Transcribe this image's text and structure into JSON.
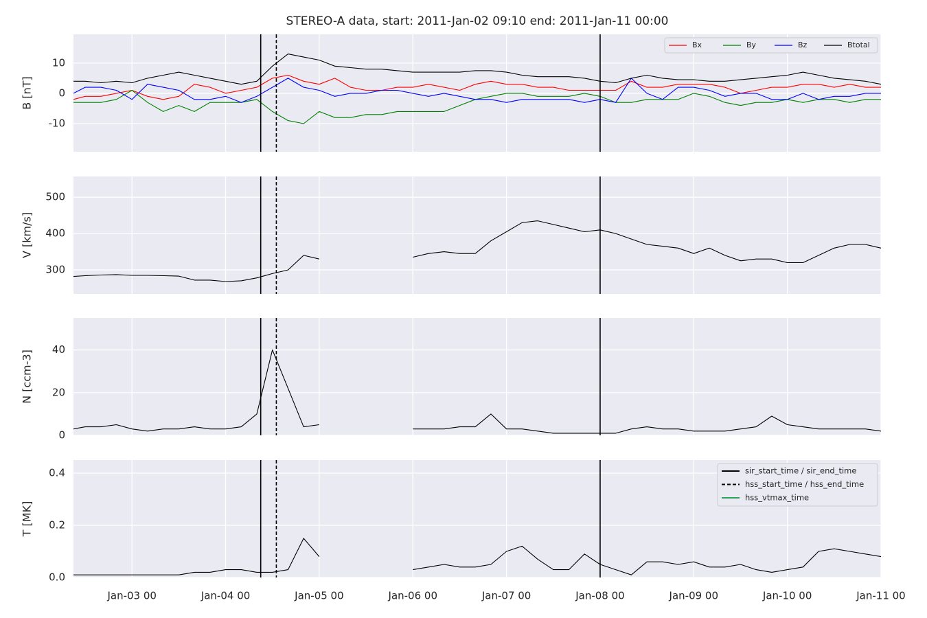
{
  "chart_data": [
    {
      "type": "line",
      "title": "STEREO-A data, start: 2011-Jan-02 09:10  end: 2011-Jan-11 00:00",
      "ylabel": "B [nT]",
      "x": [
        "Jan-02 09",
        "Jan-02 12",
        "Jan-02 16",
        "Jan-02 20",
        "Jan-03 00",
        "Jan-03 04",
        "Jan-03 08",
        "Jan-03 12",
        "Jan-03 16",
        "Jan-03 20",
        "Jan-04 00",
        "Jan-04 04",
        "Jan-04 08",
        "Jan-04 12",
        "Jan-04 16",
        "Jan-04 20",
        "Jan-05 00",
        "Jan-05 04",
        "Jan-05 08",
        "Jan-05 12",
        "Jan-05 16",
        "Jan-05 20",
        "Jan-06 00",
        "Jan-06 04",
        "Jan-06 08",
        "Jan-06 12",
        "Jan-06 16",
        "Jan-06 20",
        "Jan-07 00",
        "Jan-07 04",
        "Jan-07 08",
        "Jan-07 12",
        "Jan-07 16",
        "Jan-07 20",
        "Jan-08 00",
        "Jan-08 04",
        "Jan-08 08",
        "Jan-08 12",
        "Jan-08 16",
        "Jan-08 20",
        "Jan-09 00",
        "Jan-09 04",
        "Jan-09 08",
        "Jan-09 12",
        "Jan-09 16",
        "Jan-09 20",
        "Jan-10 00",
        "Jan-10 04",
        "Jan-10 08",
        "Jan-10 12",
        "Jan-10 16",
        "Jan-10 20",
        "Jan-11 00"
      ],
      "series": [
        {
          "name": "Bx",
          "color": "#ff0000",
          "values": [
            -2,
            -1,
            -1,
            0,
            1,
            -1,
            -2,
            -1,
            3,
            2,
            0,
            1,
            2,
            5,
            6,
            4,
            3,
            5,
            2,
            1,
            1,
            2,
            2,
            3,
            2,
            1,
            3,
            4,
            3,
            3,
            2,
            2,
            1,
            1,
            1,
            1,
            4,
            2,
            2,
            3,
            3,
            3,
            2,
            0,
            1,
            2,
            2,
            3,
            3,
            2,
            3,
            2,
            2
          ]
        },
        {
          "name": "By",
          "color": "#008000",
          "values": [
            -3,
            -3,
            -3,
            -2,
            1,
            -3,
            -6,
            -4,
            -6,
            -3,
            -3,
            -3,
            -2,
            -6,
            -9,
            -10,
            -6,
            -8,
            -8,
            -7,
            -7,
            -6,
            -6,
            -6,
            -6,
            -4,
            -2,
            -1,
            0,
            0,
            -1,
            -1,
            -1,
            0,
            -1,
            -3,
            -3,
            -2,
            -2,
            -2,
            0,
            -1,
            -3,
            -4,
            -3,
            -3,
            -2,
            -3,
            -2,
            -2,
            -3,
            -2,
            -2
          ]
        },
        {
          "name": "Bz",
          "color": "#0000ff",
          "values": [
            0,
            2,
            2,
            1,
            -2,
            3,
            2,
            1,
            -2,
            -2,
            -1,
            -3,
            -1,
            2,
            5,
            2,
            1,
            -1,
            0,
            0,
            1,
            1,
            0,
            -1,
            0,
            -1,
            -2,
            -2,
            -3,
            -2,
            -2,
            -2,
            -2,
            -3,
            -2,
            -3,
            5,
            0,
            -2,
            2,
            2,
            1,
            -1,
            0,
            0,
            -2,
            -2,
            0,
            -2,
            -1,
            -1,
            0,
            0
          ]
        },
        {
          "name": "Btotal",
          "color": "#000000",
          "values": [
            4,
            4,
            3.5,
            4,
            3.5,
            5,
            6,
            7,
            6,
            5,
            4,
            3,
            4,
            9,
            13,
            12,
            11,
            9,
            8.5,
            8,
            8,
            7.5,
            7,
            7,
            7,
            7,
            7.5,
            7.5,
            7,
            6,
            5.5,
            5.5,
            5.5,
            5,
            4,
            3.5,
            5,
            6,
            5,
            4.5,
            4.5,
            4,
            4,
            4.5,
            5,
            5.5,
            6,
            7,
            6,
            5,
            4.5,
            4,
            3
          ]
        }
      ],
      "xlim": [
        "Jan-02 09",
        "Jan-11 00"
      ],
      "xticks": [
        "Jan-03 00",
        "Jan-04 00",
        "Jan-05 00",
        "Jan-06 00",
        "Jan-07 00",
        "Jan-08 00",
        "Jan-09 00",
        "Jan-10 00",
        "Jan-11 00"
      ],
      "ylim": [
        -19.3,
        19.5
      ],
      "yticks": [
        -10,
        0,
        10
      ],
      "grid": true,
      "legend": "upper right",
      "markers": [
        {
          "color": "#000000",
          "style": "solid",
          "x": [
            "Jan-04 09",
            "Jan-08 00"
          ]
        },
        {
          "color": "#000000",
          "style": "dashed",
          "x": [
            "Jan-04 13"
          ]
        }
      ]
    },
    {
      "type": "line",
      "ylabel": "V [km/s]",
      "x": [
        "Jan-02 09",
        "Jan-02 12",
        "Jan-02 16",
        "Jan-02 20",
        "Jan-03 00",
        "Jan-03 04",
        "Jan-03 08",
        "Jan-03 12",
        "Jan-03 16",
        "Jan-03 20",
        "Jan-04 00",
        "Jan-04 04",
        "Jan-04 08",
        "Jan-04 12",
        "Jan-04 16",
        "Jan-04 20",
        "Jan-05 00",
        "Jan-05 04",
        "Jan-05 08",
        "Jan-05 12",
        "Jan-05 16",
        "Jan-05 20",
        "Jan-06 00",
        "Jan-06 04",
        "Jan-06 08",
        "Jan-06 12",
        "Jan-06 16",
        "Jan-06 20",
        "Jan-07 00",
        "Jan-07 04",
        "Jan-07 08",
        "Jan-07 12",
        "Jan-07 16",
        "Jan-07 20",
        "Jan-08 00",
        "Jan-08 04",
        "Jan-08 08",
        "Jan-08 12",
        "Jan-08 16",
        "Jan-08 20",
        "Jan-09 00",
        "Jan-09 04",
        "Jan-09 08",
        "Jan-09 12",
        "Jan-09 16",
        "Jan-09 20",
        "Jan-10 00",
        "Jan-10 04",
        "Jan-10 08",
        "Jan-10 12",
        "Jan-10 16",
        "Jan-10 20",
        "Jan-11 00"
      ],
      "series": [
        {
          "color": "#000000",
          "values": [
            282,
            284,
            286,
            287,
            285,
            285,
            284,
            283,
            272,
            272,
            268,
            270,
            278,
            290,
            300,
            340,
            330,
            null,
            null,
            null,
            null,
            null,
            335,
            345,
            350,
            345,
            345,
            380,
            405,
            430,
            435,
            425,
            415,
            405,
            410,
            400,
            385,
            370,
            365,
            360,
            345,
            360,
            340,
            325,
            330,
            330,
            320,
            320,
            340,
            360,
            370,
            370,
            360
          ]
        }
      ],
      "xlim": [
        "Jan-02 09",
        "Jan-11 00"
      ],
      "xticks": [
        "Jan-03 00",
        "Jan-04 00",
        "Jan-05 00",
        "Jan-06 00",
        "Jan-07 00",
        "Jan-08 00",
        "Jan-09 00",
        "Jan-10 00",
        "Jan-11 00"
      ],
      "ylim": [
        234,
        557
      ],
      "yticks": [
        300,
        400,
        500
      ],
      "grid": true,
      "markers": [
        {
          "color": "#000000",
          "style": "solid",
          "x": [
            "Jan-04 09",
            "Jan-08 00"
          ]
        },
        {
          "color": "#000000",
          "style": "dashed",
          "x": [
            "Jan-04 13"
          ]
        }
      ]
    },
    {
      "type": "line",
      "ylabel": "N [ccm-3]",
      "x": [
        "Jan-02 09",
        "Jan-02 12",
        "Jan-02 16",
        "Jan-02 20",
        "Jan-03 00",
        "Jan-03 04",
        "Jan-03 08",
        "Jan-03 12",
        "Jan-03 16",
        "Jan-03 20",
        "Jan-04 00",
        "Jan-04 04",
        "Jan-04 08",
        "Jan-04 12",
        "Jan-04 16",
        "Jan-04 20",
        "Jan-05 00",
        "Jan-05 04",
        "Jan-05 08",
        "Jan-05 12",
        "Jan-05 16",
        "Jan-05 20",
        "Jan-06 00",
        "Jan-06 04",
        "Jan-06 08",
        "Jan-06 12",
        "Jan-06 16",
        "Jan-06 20",
        "Jan-07 00",
        "Jan-07 04",
        "Jan-07 08",
        "Jan-07 12",
        "Jan-07 16",
        "Jan-07 20",
        "Jan-08 00",
        "Jan-08 04",
        "Jan-08 08",
        "Jan-08 12",
        "Jan-08 16",
        "Jan-08 20",
        "Jan-09 00",
        "Jan-09 04",
        "Jan-09 08",
        "Jan-09 12",
        "Jan-09 16",
        "Jan-09 20",
        "Jan-10 00",
        "Jan-10 04",
        "Jan-10 08",
        "Jan-10 12",
        "Jan-10 16",
        "Jan-10 20",
        "Jan-11 00"
      ],
      "series": [
        {
          "color": "#000000",
          "values": [
            3,
            4,
            4,
            5,
            3,
            2,
            3,
            3,
            4,
            3,
            3,
            4,
            10,
            40,
            22,
            4,
            5,
            null,
            null,
            null,
            null,
            null,
            3,
            3,
            3,
            4,
            4,
            10,
            3,
            3,
            2,
            1,
            1,
            1,
            1,
            1,
            3,
            4,
            3,
            3,
            2,
            2,
            2,
            3,
            4,
            9,
            5,
            4,
            3,
            3,
            3,
            3,
            2
          ]
        }
      ],
      "xlim": [
        "Jan-02 09",
        "Jan-11 00"
      ],
      "xticks": [
        "Jan-03 00",
        "Jan-04 00",
        "Jan-05 00",
        "Jan-06 00",
        "Jan-07 00",
        "Jan-08 00",
        "Jan-09 00",
        "Jan-10 00",
        "Jan-11 00"
      ],
      "ylim": [
        0,
        55
      ],
      "yticks": [
        0,
        20,
        40
      ],
      "grid": true,
      "markers": [
        {
          "color": "#000000",
          "style": "solid",
          "x": [
            "Jan-04 09",
            "Jan-08 00"
          ]
        },
        {
          "color": "#000000",
          "style": "dashed",
          "x": [
            "Jan-04 13"
          ]
        }
      ]
    },
    {
      "type": "line",
      "ylabel": "T [MK]",
      "x": [
        "Jan-02 09",
        "Jan-02 12",
        "Jan-02 16",
        "Jan-02 20",
        "Jan-03 00",
        "Jan-03 04",
        "Jan-03 08",
        "Jan-03 12",
        "Jan-03 16",
        "Jan-03 20",
        "Jan-04 00",
        "Jan-04 04",
        "Jan-04 08",
        "Jan-04 12",
        "Jan-04 16",
        "Jan-04 20",
        "Jan-05 00",
        "Jan-05 04",
        "Jan-05 08",
        "Jan-05 12",
        "Jan-05 16",
        "Jan-05 20",
        "Jan-06 00",
        "Jan-06 04",
        "Jan-06 08",
        "Jan-06 12",
        "Jan-06 16",
        "Jan-06 20",
        "Jan-07 00",
        "Jan-07 04",
        "Jan-07 08",
        "Jan-07 12",
        "Jan-07 16",
        "Jan-07 20",
        "Jan-08 00",
        "Jan-08 04",
        "Jan-08 08",
        "Jan-08 12",
        "Jan-08 16",
        "Jan-08 20",
        "Jan-09 00",
        "Jan-09 04",
        "Jan-09 08",
        "Jan-09 12",
        "Jan-09 16",
        "Jan-09 20",
        "Jan-10 00",
        "Jan-10 04",
        "Jan-10 08",
        "Jan-10 12",
        "Jan-10 16",
        "Jan-10 20",
        "Jan-11 00"
      ],
      "series": [
        {
          "color": "#000000",
          "values": [
            0.01,
            0.01,
            0.01,
            0.01,
            0.01,
            0.01,
            0.01,
            0.01,
            0.02,
            0.02,
            0.03,
            0.03,
            0.02,
            0.02,
            0.03,
            0.15,
            0.08,
            null,
            null,
            null,
            null,
            null,
            0.03,
            0.04,
            0.05,
            0.04,
            0.04,
            0.05,
            0.1,
            0.12,
            0.07,
            0.03,
            0.03,
            0.09,
            0.05,
            0.03,
            0.01,
            0.06,
            0.06,
            0.05,
            0.06,
            0.04,
            0.04,
            0.05,
            0.03,
            0.02,
            0.03,
            0.04,
            0.1,
            0.11,
            0.1,
            0.09,
            0.08
          ]
        }
      ],
      "xlim": [
        "Jan-02 09",
        "Jan-11 00"
      ],
      "xticks": [
        {
          "value": "Jan-03 00",
          "label": "Jan-03 00"
        },
        {
          "value": "Jan-04 00",
          "label": "Jan-04 00"
        },
        {
          "value": "Jan-05 00",
          "label": "Jan-05 00"
        },
        {
          "value": "Jan-06 00",
          "label": "Jan-06 00"
        },
        {
          "value": "Jan-07 00",
          "label": "Jan-07 00"
        },
        {
          "value": "Jan-08 00",
          "label": "Jan-08 00"
        },
        {
          "value": "Jan-09 00",
          "label": "Jan-09 00"
        },
        {
          "value": "Jan-10 00",
          "label": "Jan-10 00"
        },
        {
          "value": "Jan-11 00",
          "label": "Jan-11 00"
        }
      ],
      "ylim": [
        0,
        0.45
      ],
      "yticks": [
        {
          "value": 0,
          "label": "0.0"
        },
        0.2,
        0.4
      ],
      "grid": true,
      "legend": "upper right",
      "markers": [
        {
          "name": "sir_start_time / sir_end_time",
          "color": "#000000",
          "style": "solid",
          "x": [
            "Jan-04 09",
            "Jan-08 00"
          ]
        },
        {
          "name": "hss_start_time / hss_end_time",
          "color": "#000000",
          "style": "dashed",
          "x": [
            "Jan-04 13"
          ]
        },
        {
          "name": "hss_vtmax_time",
          "color": "#2ca25f",
          "style": "solid",
          "x": []
        }
      ]
    }
  ]
}
